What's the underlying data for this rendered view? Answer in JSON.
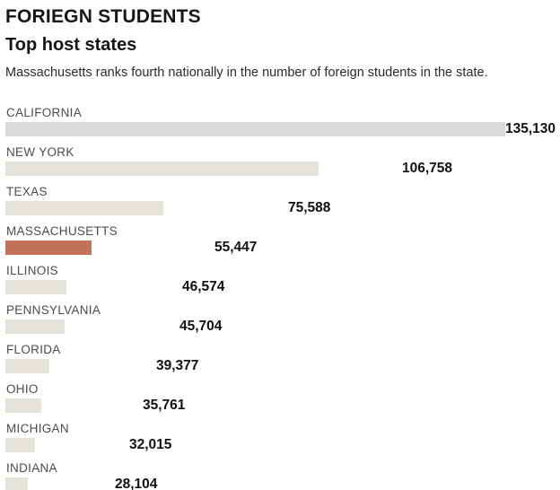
{
  "header": {
    "title": "FORIEGN STUDENTS",
    "subtitle": "Top host states",
    "description": "Massachusetts ranks fourth nationally in the number of foreign students in the state."
  },
  "colors": {
    "bar_default": "#e6e3da",
    "bar_first": "#d9d9db",
    "bar_highlight": "#c2705a",
    "state_label_text": "#4b4b49",
    "value_label_text": "#111111",
    "background": "#ffffff"
  },
  "chart_data": {
    "type": "bar",
    "orientation": "horizontal",
    "title": "Top host states",
    "kicker": "FORIEGN STUDENTS",
    "subtitle_note": "Massachusetts ranks fourth nationally in the number of foreign students in the state.",
    "xlabel": "",
    "ylabel": "",
    "xlim": [
      0,
      135130
    ],
    "grid": false,
    "legend": false,
    "categories": [
      "CALIFORNIA",
      "NEW YORK",
      "TEXAS",
      "MASSACHUSETTS",
      "ILLINOIS",
      "PENNSYLVANIA",
      "FLORIDA",
      "OHIO",
      "MICHIGAN",
      "INDIANA"
    ],
    "values": [
      135130,
      106758,
      75588,
      55447,
      46574,
      45704,
      39377,
      35761,
      32015,
      28104
    ],
    "value_labels": [
      "135,130",
      "106,758",
      "75,588",
      "55,447",
      "46,574",
      "45,704",
      "39,377",
      "35,761",
      "32,015",
      "28,104"
    ],
    "highlight_index": 3,
    "first_bar_color": "#d9d9db",
    "default_bar_color": "#e6e3da",
    "highlight_color": "#c2705a"
  }
}
